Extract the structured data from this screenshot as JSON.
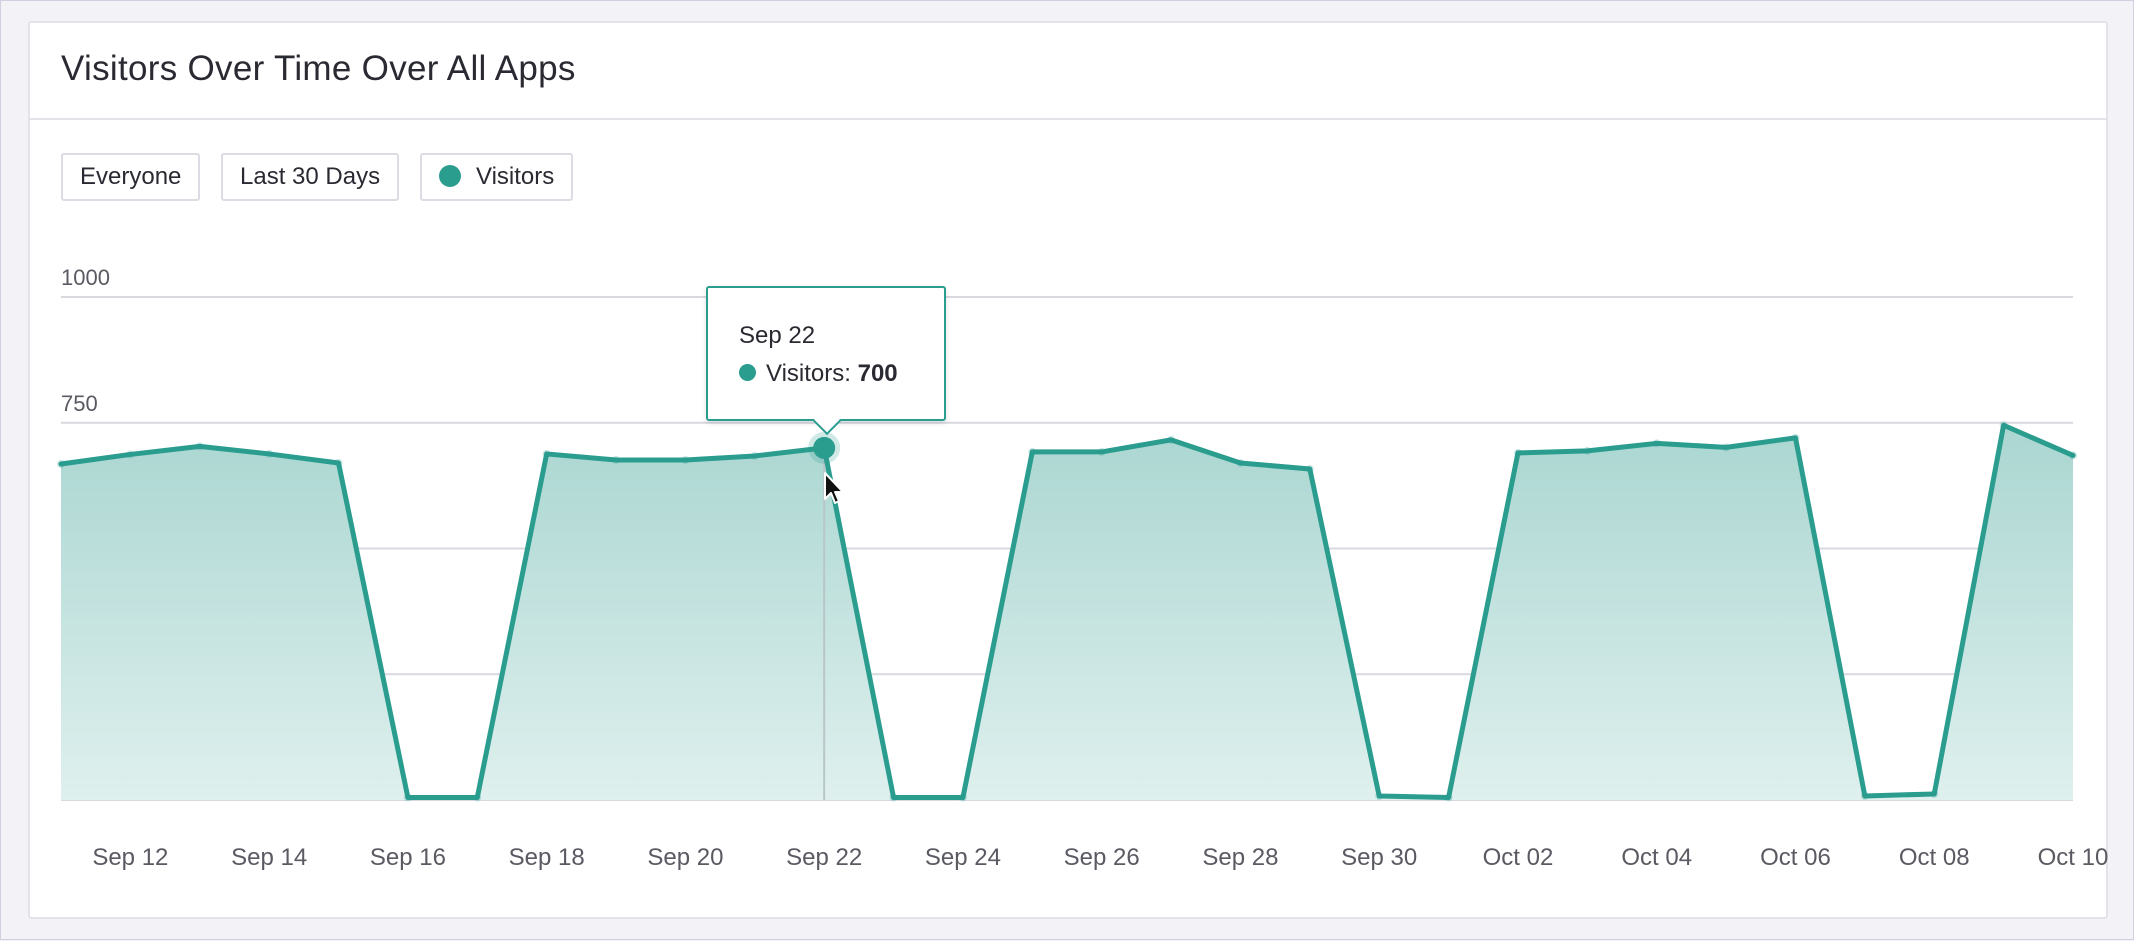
{
  "card": {
    "title": "Visitors Over Time Over All Apps"
  },
  "filters": {
    "segment": "Everyone",
    "range": "Last 30 Days",
    "metric": "Visitors"
  },
  "colors": {
    "series": "#2a9d8f",
    "fill_top": "#aad6d1",
    "fill_bottom": "#dff0ee",
    "grid": "#d7d9df",
    "axis_text": "#5a5a63"
  },
  "tooltip": {
    "date": "Sep 22",
    "series_label": "Visitors: ",
    "value": "700"
  },
  "chart_data": {
    "type": "area",
    "title": "Visitors Over Time Over All Apps",
    "x": [
      "Sep 11",
      "Sep 12",
      "Sep 13",
      "Sep 14",
      "Sep 15",
      "Sep 16",
      "Sep 17",
      "Sep 18",
      "Sep 19",
      "Sep 20",
      "Sep 21",
      "Sep 22",
      "Sep 23",
      "Sep 24",
      "Sep 25",
      "Sep 26",
      "Sep 27",
      "Sep 28",
      "Sep 29",
      "Sep 30",
      "Oct 01",
      "Oct 02",
      "Oct 03",
      "Oct 04",
      "Oct 05",
      "Oct 06",
      "Oct 07",
      "Oct 08",
      "Oct 09",
      "Oct 10"
    ],
    "x_tick_labels": [
      "Sep 12",
      "Sep 14",
      "Sep 16",
      "Sep 18",
      "Sep 20",
      "Sep 22",
      "Sep 24",
      "Sep 26",
      "Sep 28",
      "Sep 30",
      "Oct 02",
      "Oct 04",
      "Oct 06",
      "Oct 08",
      "Oct 10"
    ],
    "series": [
      {
        "name": "Visitors",
        "values": [
          668,
          687,
          703,
          688,
          670,
          5,
          5,
          688,
          676,
          676,
          684,
          700,
          5,
          5,
          692,
          692,
          716,
          670,
          658,
          8,
          5,
          690,
          694,
          709,
          701,
          720,
          8,
          12,
          745,
          685
        ]
      }
    ],
    "y_ticks": [
      0,
      250,
      500,
      750,
      1000
    ],
    "ylim": [
      0,
      1000
    ],
    "grid": true,
    "highlight": {
      "x": "Sep 22",
      "value": 700
    }
  }
}
